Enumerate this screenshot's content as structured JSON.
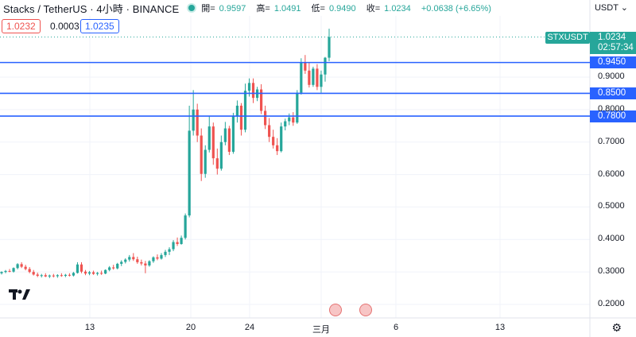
{
  "header": {
    "symbol_line": "Stacks / TetherUS · 4小時 · BINANCE",
    "open_label": "開=",
    "open": "0.9597",
    "high_label": "高=",
    "high": "1.0491",
    "low_label": "低=",
    "low": "0.9490",
    "close_label": "收=",
    "close": "1.0234",
    "change": "+0.0638 (+6.65%)"
  },
  "price_boxes": {
    "sell": "1.0232",
    "spread": "0.0003",
    "buy": "1.0235"
  },
  "axis": {
    "currency": "USDT",
    "currency_icon": "chevron-down-icon",
    "last_symbol": "STXUSDT",
    "last_price": "1.0234",
    "countdown": "02:57:34",
    "price_lines": [
      "0.9450",
      "0.8500",
      "0.7800"
    ]
  },
  "icons": {
    "logo": "tradingview-logo",
    "events": "us-flag-icon",
    "settings": "gear-icon"
  },
  "colors": {
    "up": "#26a69a",
    "down": "#ef5350",
    "line": "#2962ff",
    "grid": "#f0f3fa"
  },
  "chart_data": {
    "type": "candlestick",
    "ylim": [
      0.17,
      1.08
    ],
    "yticks": [
      0.2,
      0.3,
      0.4,
      0.5,
      0.6,
      0.7,
      0.8,
      0.9
    ],
    "ytick_labels": [
      "0.2000",
      "0.3000",
      "0.4000",
      "0.5000",
      "0.6000",
      "0.7000",
      "0.8000",
      "0.9000"
    ],
    "x_labels": [
      "13",
      "20",
      "24",
      "三月",
      "6",
      "13"
    ],
    "horizontal_lines": [
      0.945,
      0.85,
      0.78
    ],
    "last_price": 1.0234,
    "candles": [
      [
        0.296,
        0.302,
        0.292,
        0.3
      ],
      [
        0.3,
        0.306,
        0.296,
        0.303
      ],
      [
        0.303,
        0.309,
        0.299,
        0.301
      ],
      [
        0.301,
        0.314,
        0.298,
        0.312
      ],
      [
        0.312,
        0.327,
        0.308,
        0.324
      ],
      [
        0.324,
        0.33,
        0.312,
        0.316
      ],
      [
        0.316,
        0.322,
        0.305,
        0.309
      ],
      [
        0.309,
        0.315,
        0.296,
        0.3
      ],
      [
        0.3,
        0.306,
        0.289,
        0.292
      ],
      [
        0.292,
        0.298,
        0.284,
        0.288
      ],
      [
        0.288,
        0.294,
        0.283,
        0.29
      ],
      [
        0.29,
        0.296,
        0.284,
        0.286
      ],
      [
        0.286,
        0.292,
        0.281,
        0.289
      ],
      [
        0.289,
        0.294,
        0.283,
        0.287
      ],
      [
        0.287,
        0.293,
        0.282,
        0.29
      ],
      [
        0.29,
        0.296,
        0.285,
        0.288
      ],
      [
        0.288,
        0.294,
        0.284,
        0.291
      ],
      [
        0.291,
        0.296,
        0.286,
        0.289
      ],
      [
        0.289,
        0.3,
        0.286,
        0.297
      ],
      [
        0.297,
        0.33,
        0.295,
        0.323
      ],
      [
        0.323,
        0.33,
        0.296,
        0.301
      ],
      [
        0.301,
        0.306,
        0.29,
        0.295
      ],
      [
        0.295,
        0.303,
        0.29,
        0.299
      ],
      [
        0.299,
        0.304,
        0.291,
        0.294
      ],
      [
        0.294,
        0.3,
        0.289,
        0.297
      ],
      [
        0.297,
        0.304,
        0.291,
        0.295
      ],
      [
        0.295,
        0.308,
        0.293,
        0.306
      ],
      [
        0.306,
        0.318,
        0.302,
        0.314
      ],
      [
        0.314,
        0.322,
        0.307,
        0.311
      ],
      [
        0.311,
        0.328,
        0.308,
        0.325
      ],
      [
        0.325,
        0.336,
        0.318,
        0.331
      ],
      [
        0.331,
        0.342,
        0.326,
        0.338
      ],
      [
        0.338,
        0.352,
        0.332,
        0.346
      ],
      [
        0.346,
        0.358,
        0.334,
        0.339
      ],
      [
        0.339,
        0.347,
        0.325,
        0.33
      ],
      [
        0.33,
        0.338,
        0.32,
        0.326
      ],
      [
        0.326,
        0.334,
        0.296,
        0.32
      ],
      [
        0.32,
        0.336,
        0.316,
        0.333
      ],
      [
        0.333,
        0.348,
        0.328,
        0.345
      ],
      [
        0.345,
        0.354,
        0.336,
        0.341
      ],
      [
        0.341,
        0.358,
        0.338,
        0.352
      ],
      [
        0.352,
        0.368,
        0.346,
        0.362
      ],
      [
        0.362,
        0.376,
        0.352,
        0.37
      ],
      [
        0.37,
        0.398,
        0.364,
        0.392
      ],
      [
        0.392,
        0.406,
        0.38,
        0.386
      ],
      [
        0.386,
        0.412,
        0.384,
        0.405
      ],
      [
        0.405,
        0.48,
        0.4,
        0.474
      ],
      [
        0.474,
        0.812,
        0.468,
        0.735
      ],
      [
        0.735,
        0.86,
        0.72,
        0.8
      ],
      [
        0.8,
        0.818,
        0.7,
        0.72
      ],
      [
        0.72,
        0.742,
        0.58,
        0.602
      ],
      [
        0.602,
        0.69,
        0.59,
        0.676
      ],
      [
        0.676,
        0.78,
        0.668,
        0.748
      ],
      [
        0.748,
        0.76,
        0.63,
        0.65
      ],
      [
        0.65,
        0.68,
        0.6,
        0.618
      ],
      [
        0.618,
        0.72,
        0.612,
        0.7
      ],
      [
        0.7,
        0.762,
        0.69,
        0.742
      ],
      [
        0.742,
        0.75,
        0.66,
        0.67
      ],
      [
        0.67,
        0.79,
        0.664,
        0.78
      ],
      [
        0.78,
        0.828,
        0.76,
        0.812
      ],
      [
        0.812,
        0.82,
        0.72,
        0.738
      ],
      [
        0.738,
        0.88,
        0.73,
        0.858
      ],
      [
        0.858,
        0.896,
        0.84,
        0.882
      ],
      [
        0.882,
        0.896,
        0.82,
        0.836
      ],
      [
        0.836,
        0.87,
        0.826,
        0.862
      ],
      [
        0.862,
        0.878,
        0.786,
        0.796
      ],
      [
        0.796,
        0.812,
        0.74,
        0.752
      ],
      [
        0.752,
        0.774,
        0.7,
        0.716
      ],
      [
        0.716,
        0.738,
        0.68,
        0.69
      ],
      [
        0.69,
        0.712,
        0.66,
        0.672
      ],
      [
        0.672,
        0.76,
        0.668,
        0.748
      ],
      [
        0.748,
        0.772,
        0.736,
        0.764
      ],
      [
        0.764,
        0.788,
        0.752,
        0.776
      ],
      [
        0.776,
        0.792,
        0.75,
        0.76
      ],
      [
        0.76,
        0.86,
        0.756,
        0.852
      ],
      [
        0.852,
        0.958,
        0.846,
        0.946
      ],
      [
        0.946,
        0.968,
        0.91,
        0.92
      ],
      [
        0.92,
        0.946,
        0.868,
        0.876
      ],
      [
        0.876,
        0.932,
        0.87,
        0.926
      ],
      [
        0.926,
        0.94,
        0.86,
        0.87
      ],
      [
        0.87,
        0.92,
        0.852,
        0.908
      ],
      [
        0.908,
        0.962,
        0.886,
        0.9597
      ],
      [
        0.9597,
        1.0491,
        0.949,
        1.0234
      ]
    ]
  }
}
